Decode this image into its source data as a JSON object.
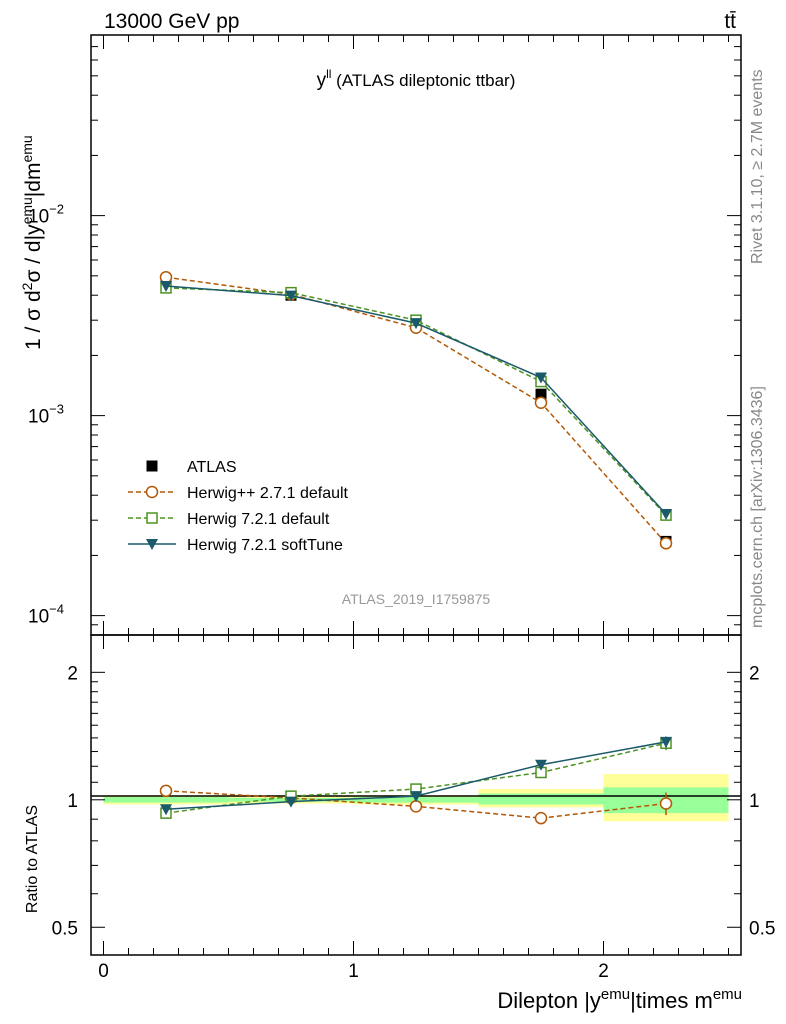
{
  "header": {
    "energy": "13000 GeV pp",
    "process": "tt̄"
  },
  "side_labels": {
    "rivet": "Rivet 3.1.10, ≥ 2.7M events",
    "mcplots": "mcplots.cern.ch [arXiv:1306.3436]"
  },
  "analysis_id": "ATLAS_2019_I1759875",
  "colors": {
    "atlas": "#000000",
    "herwigpp": "#b35806",
    "herwig721": "#4d9221",
    "softtune": "#1a5a6a",
    "band_yellow": "#ffff99",
    "band_green": "#99ff99"
  },
  "chart_data": [
    {
      "type": "line",
      "panel": "main",
      "title_main": "y",
      "title_sup": "ll",
      "title_rest": " (ATLAS dileptonic ttbar)",
      "ylabel": "1 / σ d²σ / d|y^emu|dm^emu",
      "yscale": "log",
      "ylim": [
        8e-05,
        0.08
      ],
      "xlim": [
        -0.05,
        2.55
      ],
      "x": [
        0.25,
        0.75,
        1.25,
        1.75,
        2.25
      ],
      "y_ticks": [
        {
          "base": "10",
          "exp": "−2",
          "value": 0.01
        },
        {
          "base": "10",
          "exp": "−3",
          "value": 0.001
        },
        {
          "base": "10",
          "exp": "−4",
          "value": 0.0001
        }
      ],
      "series": [
        {
          "name": "ATLAS",
          "key": "atlas",
          "marker": "square-filled",
          "style": "none",
          "values": [
            0.00468,
            0.004,
            0.00285,
            0.00128,
            0.000235
          ]
        },
        {
          "name": "Herwig++ 2.7.1 default",
          "key": "herwigpp",
          "marker": "circle-open",
          "style": "dashed",
          "values": [
            0.00492,
            0.00404,
            0.00275,
            0.00116,
            0.00023
          ]
        },
        {
          "name": "Herwig 7.2.1 default",
          "key": "herwig721",
          "marker": "square-open",
          "style": "dashed",
          "values": [
            0.00435,
            0.00412,
            0.003,
            0.00148,
            0.000318
          ]
        },
        {
          "name": "Herwig 7.2.1 softTune",
          "key": "softtune",
          "marker": "triangle-down-filled",
          "style": "solid",
          "values": [
            0.00445,
            0.00398,
            0.0029,
            0.00155,
            0.000322
          ]
        }
      ]
    },
    {
      "type": "line",
      "panel": "ratio",
      "ylabel": "Ratio to ATLAS",
      "yscale": "log",
      "ylim": [
        0.43,
        2.45
      ],
      "y_ticks": [
        {
          "label": "2",
          "value": 2
        },
        {
          "label": "1",
          "value": 1
        },
        {
          "label": "0.5",
          "value": 0.5
        }
      ],
      "xlabel_main": "Dilepton |y",
      "xlabel_sup1": "emu",
      "xlabel_mid": "|times m",
      "xlabel_sup2": "emu",
      "x_ticks": [
        {
          "label": "0",
          "value": 0
        },
        {
          "label": "1",
          "value": 1
        },
        {
          "label": "2",
          "value": 2
        }
      ],
      "x": [
        0.25,
        0.75,
        1.25,
        1.75,
        2.25
      ],
      "bins": [
        [
          0,
          0.5
        ],
        [
          0.5,
          1.0
        ],
        [
          1.0,
          1.5
        ],
        [
          1.5,
          2.0
        ],
        [
          2.0,
          2.5
        ]
      ],
      "band_yellow": [
        [
          0.975,
          1.025
        ],
        [
          0.98,
          1.02
        ],
        [
          0.975,
          1.025
        ],
        [
          0.96,
          1.06
        ],
        [
          0.89,
          1.15
        ]
      ],
      "band_green": [
        [
          0.985,
          1.015
        ],
        [
          0.99,
          1.01
        ],
        [
          0.985,
          1.015
        ],
        [
          0.975,
          1.035
        ],
        [
          0.93,
          1.07
        ]
      ],
      "series": [
        {
          "name": "Herwig++ 2.7.1 default",
          "key": "herwigpp",
          "marker": "circle-open",
          "style": "dashed",
          "values": [
            1.05,
            1.01,
            0.965,
            0.905,
            0.98
          ],
          "errors": [
            0,
            0,
            0,
            0,
            0.06
          ]
        },
        {
          "name": "Herwig 7.2.1 default",
          "key": "herwig721",
          "marker": "square-open",
          "style": "dashed",
          "values": [
            0.93,
            1.02,
            1.06,
            1.16,
            1.36
          ],
          "errors": [
            0,
            0,
            0,
            0,
            0.05
          ]
        },
        {
          "name": "Herwig 7.2.1 softTune",
          "key": "softtune",
          "marker": "triangle-down-filled",
          "style": "solid",
          "values": [
            0.95,
            0.99,
            1.02,
            1.21,
            1.37
          ],
          "errors": [
            0,
            0,
            0,
            0,
            0.04
          ]
        }
      ]
    }
  ]
}
